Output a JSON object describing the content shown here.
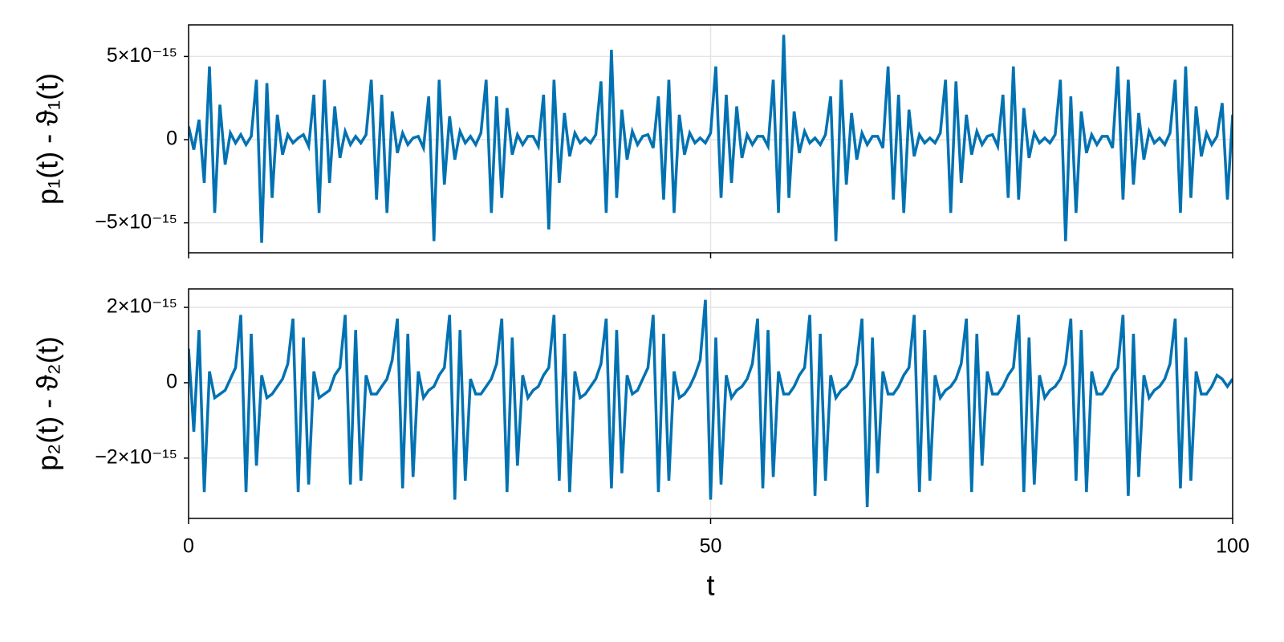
{
  "chart_data": [
    {
      "type": "line",
      "ylabel": "p₁(t) - ϑ₁(t)",
      "color": "#0072b2",
      "xlim": [
        0,
        100
      ],
      "xticks": [
        0,
        50,
        100
      ],
      "ylim": [
        -6.8e-15,
        6.9e-15
      ],
      "yticks": [
        {
          "value": -5e-15,
          "label": "−5×10⁻¹⁵"
        },
        0,
        {
          "value": 5e-15,
          "label": "5×10⁻¹⁵"
        }
      ],
      "grid": true,
      "x": [
        0,
        0.5,
        1,
        1.5,
        2,
        2.5,
        3,
        3.5,
        4,
        4.5,
        5,
        5.5,
        6,
        6.5,
        7,
        7.5,
        8,
        8.5,
        9,
        9.5,
        10,
        10.5,
        11,
        11.5,
        12,
        12.5,
        13,
        13.5,
        14,
        14.5,
        15,
        15.5,
        16,
        16.5,
        17,
        17.5,
        18,
        18.5,
        19,
        19.5,
        20,
        20.5,
        21,
        21.5,
        22,
        22.5,
        23,
        23.5,
        24,
        24.5,
        25,
        25.5,
        26,
        26.5,
        27,
        27.5,
        28,
        28.5,
        29,
        29.5,
        30,
        30.5,
        31,
        31.5,
        32,
        32.5,
        33,
        33.5,
        34,
        34.5,
        35,
        35.5,
        36,
        36.5,
        37,
        37.5,
        38,
        38.5,
        39,
        39.5,
        40,
        40.5,
        41,
        41.5,
        42,
        42.5,
        43,
        43.5,
        44,
        44.5,
        45,
        45.5,
        46,
        46.5,
        47,
        47.5,
        48,
        48.5,
        49,
        49.5,
        50,
        50.5,
        51,
        51.5,
        52,
        52.5,
        53,
        53.5,
        54,
        54.5,
        55,
        55.5,
        56,
        56.5,
        57,
        57.5,
        58,
        58.5,
        59,
        59.5,
        60,
        60.5,
        61,
        61.5,
        62,
        62.5,
        63,
        63.5,
        64,
        64.5,
        65,
        65.5,
        66,
        66.5,
        67,
        67.5,
        68,
        68.5,
        69,
        69.5,
        70,
        70.5,
        71,
        71.5,
        72,
        72.5,
        73,
        73.5,
        74,
        74.5,
        75,
        75.5,
        76,
        76.5,
        77,
        77.5,
        78,
        78.5,
        79,
        79.5,
        80,
        80.5,
        81,
        81.5,
        82,
        82.5,
        83,
        83.5,
        84,
        84.5,
        85,
        85.5,
        86,
        86.5,
        87,
        87.5,
        88,
        88.5,
        89,
        89.5,
        90,
        90.5,
        91,
        91.5,
        92,
        92.5,
        93,
        93.5,
        94,
        94.5,
        95,
        95.5,
        96,
        96.5,
        97,
        97.5,
        98,
        98.5,
        99,
        99.5,
        100
      ],
      "values": [
        8e-16,
        -6e-16,
        1.2e-15,
        -2.6e-15,
        4.4e-15,
        -4.4e-15,
        2.1e-15,
        -1.5e-15,
        4e-16,
        -2e-16,
        3e-16,
        -3e-16,
        2e-16,
        3.6e-15,
        -6.2e-15,
        3.4e-15,
        -3.5e-15,
        1.5e-15,
        -9e-16,
        3e-16,
        -2e-16,
        1e-16,
        3e-16,
        -4e-16,
        2.7e-15,
        -4.4e-15,
        3.6e-15,
        -2.6e-15,
        2e-15,
        -1.1e-15,
        5e-16,
        -3e-16,
        2e-16,
        -2e-16,
        3e-16,
        3.6e-15,
        -3.6e-15,
        2.7e-15,
        -4.4e-15,
        1.7e-15,
        -8e-16,
        4e-16,
        -3e-16,
        1e-16,
        2e-16,
        -5e-16,
        2.6e-15,
        -6.1e-15,
        3.6e-15,
        -2.7e-15,
        1.4e-15,
        -1.2e-15,
        5e-16,
        -2e-16,
        2e-16,
        -3e-16,
        4e-16,
        3.6e-15,
        -4.4e-15,
        2.6e-15,
        -3.5e-15,
        1.9e-15,
        -9e-16,
        3e-16,
        -3e-16,
        2e-16,
        2e-16,
        -4e-16,
        2.7e-15,
        -5.4e-15,
        3.6e-15,
        -2.6e-15,
        1.6e-15,
        -1e-15,
        4e-16,
        -2e-16,
        1e-16,
        -2e-16,
        3e-16,
        3.5e-15,
        -4.4e-15,
        5.4e-15,
        -3.5e-15,
        1.8e-15,
        -1.2e-15,
        5e-16,
        -3e-16,
        2e-16,
        3e-16,
        -5e-16,
        2.6e-15,
        -3.6e-15,
        3.6e-15,
        -4.4e-15,
        1.5e-15,
        -9e-16,
        4e-16,
        -2e-16,
        1e-16,
        -2e-16,
        4e-16,
        4.4e-15,
        -3.5e-15,
        2.7e-15,
        -2.6e-15,
        2e-15,
        -1.1e-15,
        3e-16,
        -3e-16,
        2e-16,
        2e-16,
        -4e-16,
        3.6e-15,
        -4.4e-15,
        6.3e-15,
        -3.5e-15,
        1.7e-15,
        -8e-16,
        5e-16,
        -2e-16,
        1e-16,
        -3e-16,
        3e-16,
        2.6e-15,
        -6.1e-15,
        3.6e-15,
        -2.7e-15,
        1.6e-15,
        -1.2e-15,
        4e-16,
        -3e-16,
        2e-16,
        2e-16,
        -5e-16,
        4.4e-15,
        -3.6e-15,
        2.7e-15,
        -4.4e-15,
        1.8e-15,
        -1e-15,
        3e-16,
        -2e-16,
        1e-16,
        -2e-16,
        4e-16,
        3.6e-15,
        -4.4e-15,
        3.5e-15,
        -2.6e-15,
        1.5e-15,
        -9e-16,
        5e-16,
        -3e-16,
        2e-16,
        3e-16,
        -4e-16,
        2.7e-15,
        -3.5e-15,
        4.4e-15,
        -3.6e-15,
        1.9e-15,
        -1.1e-15,
        4e-16,
        -2e-16,
        1e-16,
        -2e-16,
        3e-16,
        3.6e-15,
        -6.1e-15,
        2.6e-15,
        -4.4e-15,
        1.7e-15,
        -8e-16,
        3e-16,
        -3e-16,
        2e-16,
        2e-16,
        -5e-16,
        4.4e-15,
        -3.6e-15,
        3.6e-15,
        -2.7e-15,
        1.6e-15,
        -1.2e-15,
        5e-16,
        -2e-16,
        1e-16,
        -3e-16,
        4e-16,
        3.6e-15,
        -4.4e-15,
        4.4e-15,
        -3.5e-15,
        2e-15,
        -1e-15,
        4e-16,
        -3e-16,
        2e-16,
        2.2e-15,
        -3.6e-15,
        1.5e-15
      ]
    },
    {
      "type": "line",
      "ylabel": "p₂(t) - ϑ₂(t)",
      "xlabel": "t",
      "color": "#0072b2",
      "xlim": [
        0,
        100
      ],
      "xticks": [
        0,
        50,
        100
      ],
      "ylim": [
        -3.6e-15,
        2.49e-15
      ],
      "yticks": [
        {
          "value": -2e-15,
          "label": "−2×10⁻¹⁵"
        },
        0,
        {
          "value": 2e-15,
          "label": "2×10⁻¹⁵"
        }
      ],
      "grid": true,
      "x": [
        0,
        0.5,
        1,
        1.5,
        2,
        2.5,
        3,
        3.5,
        4,
        4.5,
        5,
        5.5,
        6,
        6.5,
        7,
        7.5,
        8,
        8.5,
        9,
        9.5,
        10,
        10.5,
        11,
        11.5,
        12,
        12.5,
        13,
        13.5,
        14,
        14.5,
        15,
        15.5,
        16,
        16.5,
        17,
        17.5,
        18,
        18.5,
        19,
        19.5,
        20,
        20.5,
        21,
        21.5,
        22,
        22.5,
        23,
        23.5,
        24,
        24.5,
        25,
        25.5,
        26,
        26.5,
        27,
        27.5,
        28,
        28.5,
        29,
        29.5,
        30,
        30.5,
        31,
        31.5,
        32,
        32.5,
        33,
        33.5,
        34,
        34.5,
        35,
        35.5,
        36,
        36.5,
        37,
        37.5,
        38,
        38.5,
        39,
        39.5,
        40,
        40.5,
        41,
        41.5,
        42,
        42.5,
        43,
        43.5,
        44,
        44.5,
        45,
        45.5,
        46,
        46.5,
        47,
        47.5,
        48,
        48.5,
        49,
        49.5,
        50,
        50.5,
        51,
        51.5,
        52,
        52.5,
        53,
        53.5,
        54,
        54.5,
        55,
        55.5,
        56,
        56.5,
        57,
        57.5,
        58,
        58.5,
        59,
        59.5,
        60,
        60.5,
        61,
        61.5,
        62,
        62.5,
        63,
        63.5,
        64,
        64.5,
        65,
        65.5,
        66,
        66.5,
        67,
        67.5,
        68,
        68.5,
        69,
        69.5,
        70,
        70.5,
        71,
        71.5,
        72,
        72.5,
        73,
        73.5,
        74,
        74.5,
        75,
        75.5,
        76,
        76.5,
        77,
        77.5,
        78,
        78.5,
        79,
        79.5,
        80,
        80.5,
        81,
        81.5,
        82,
        82.5,
        83,
        83.5,
        84,
        84.5,
        85,
        85.5,
        86,
        86.5,
        87,
        87.5,
        88,
        88.5,
        89,
        89.5,
        90,
        90.5,
        91,
        91.5,
        92,
        92.5,
        93,
        93.5,
        94,
        94.5,
        95,
        95.5,
        96,
        96.5,
        97,
        97.5,
        98,
        98.5,
        99,
        99.5,
        100
      ],
      "values": [
        9e-16,
        -1.3e-15,
        1.4e-15,
        -2.9e-15,
        3e-16,
        -4e-16,
        -3e-16,
        -2e-16,
        1e-16,
        4e-16,
        1.8e-15,
        -2.9e-15,
        1.3e-15,
        -2.2e-15,
        2e-16,
        -4e-16,
        -3e-16,
        -1e-16,
        1e-16,
        5e-16,
        1.7e-15,
        -2.9e-15,
        1.2e-15,
        -2.7e-15,
        3e-16,
        -4e-16,
        -3e-16,
        -2e-16,
        2e-16,
        4e-16,
        1.8e-15,
        -2.7e-15,
        1.4e-15,
        -2.6e-15,
        2e-16,
        -3e-16,
        -3e-16,
        -1e-16,
        1e-16,
        6e-16,
        1.7e-15,
        -2.8e-15,
        1.3e-15,
        -2.5e-15,
        3e-16,
        -4e-16,
        -2e-16,
        -1e-16,
        2e-16,
        4e-16,
        1.8e-15,
        -3.1e-15,
        1.4e-15,
        -2.6e-15,
        1e-16,
        -3e-16,
        -3e-16,
        -1e-16,
        1e-16,
        5e-16,
        1.7e-15,
        -2.9e-15,
        1.2e-15,
        -2.2e-15,
        2e-16,
        -4e-16,
        -2e-16,
        -1e-16,
        2e-16,
        4e-16,
        1.8e-15,
        -2.6e-15,
        1.3e-15,
        -2.9e-15,
        3e-16,
        -4e-16,
        -3e-16,
        -1e-16,
        1e-16,
        5e-16,
        1.7e-15,
        -2.8e-15,
        1.4e-15,
        -2.4e-15,
        2e-16,
        -3e-16,
        -2e-16,
        1e-16,
        4e-16,
        1.8e-15,
        -2.9e-15,
        1.3e-15,
        -2.6e-15,
        3e-16,
        -4e-16,
        -3e-16,
        -1e-16,
        2e-16,
        6e-16,
        2.2e-15,
        -3.1e-15,
        1.2e-15,
        -2.7e-15,
        2e-16,
        -4e-16,
        -2e-16,
        -1e-16,
        1e-16,
        5e-16,
        1.7e-15,
        -2.8e-15,
        1.4e-15,
        -2.5e-15,
        3e-16,
        -3e-16,
        -3e-16,
        -1e-16,
        2e-16,
        4e-16,
        1.8e-15,
        -3e-15,
        1.3e-15,
        -2.6e-15,
        2e-16,
        -4e-16,
        -2e-16,
        -1e-16,
        1e-16,
        5e-16,
        1.7e-15,
        -3.3e-15,
        1.2e-15,
        -2.4e-15,
        3e-16,
        -3e-16,
        -3e-16,
        -1e-16,
        2e-16,
        4e-16,
        1.8e-15,
        -2.9e-15,
        1.4e-15,
        -2.6e-15,
        2e-16,
        -4e-16,
        -2e-16,
        -1e-16,
        1e-16,
        5e-16,
        1.7e-15,
        -2.9e-15,
        1.3e-15,
        -2.2e-15,
        3e-16,
        -3e-16,
        -3e-16,
        -1e-16,
        2e-16,
        4e-16,
        1.8e-15,
        -2.9e-15,
        1.2e-15,
        -2.7e-15,
        2e-16,
        -4e-16,
        -2e-16,
        -1e-16,
        1e-16,
        5e-16,
        1.7e-15,
        -2.6e-15,
        1.4e-15,
        -2.9e-15,
        3e-16,
        -3e-16,
        -3e-16,
        -1e-16,
        2e-16,
        4e-16,
        1.8e-15,
        -3e-15,
        1.3e-15,
        -2.5e-15,
        2e-16,
        -4e-16,
        -2e-16,
        -1e-16,
        1e-16,
        5e-16,
        1.7e-15,
        -2.8e-15,
        1.2e-15,
        -2.6e-15,
        3e-16,
        -3e-16,
        -3e-16,
        -1e-16,
        2e-16,
        1e-16,
        -1e-16,
        1e-16
      ]
    }
  ]
}
